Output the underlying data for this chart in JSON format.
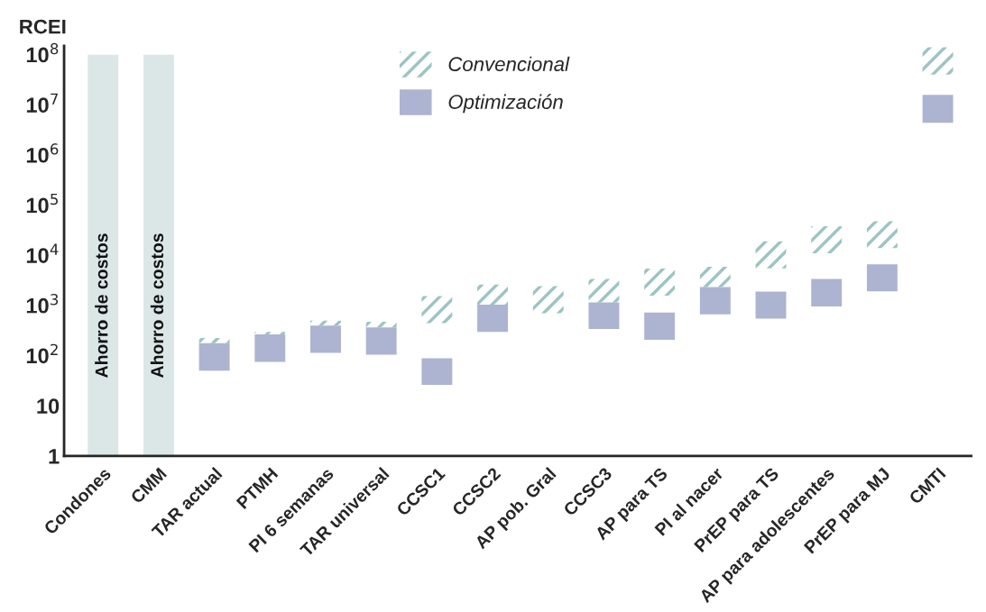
{
  "chart_data": {
    "type": "bar",
    "ylabel": "RCEI",
    "log": true,
    "legend": "top",
    "grid": false,
    "categories": [
      "Condones",
      "CMM",
      "TAR actual",
      "PTMH",
      "PI 6 semanas",
      "TAR universal",
      "CCSC1",
      "CCSC2",
      "AP pob. Gral",
      "CCSC3",
      "AP para TS",
      "PI al nacer",
      "PrEP para TS",
      "AP para adolescentes",
      "PrEP para MJ",
      "CMTI"
    ],
    "ylim": [
      1,
      150000000
    ],
    "yticks": [
      1,
      10,
      {
        "value": 100,
        "label": "10$^{2}$"
      },
      {
        "value": 1000,
        "label": "10$^{3}$"
      },
      {
        "value": 10000,
        "label": "10$^{4}$"
      },
      {
        "value": 100000,
        "label": "10$^{5}$"
      },
      {
        "value": 1000000,
        "label": "10$^{6}$"
      },
      {
        "value": 10000000,
        "label": "10$^{7}$"
      },
      {
        "value": 100000000,
        "label": "10$^{8}$"
      }
    ],
    "series": [
      {
        "color": "#dbe7e6",
        "base": [
          1,
          1,
          null,
          null,
          null,
          null,
          null,
          null,
          null,
          null,
          null,
          null,
          null,
          null,
          null,
          null
        ],
        "values": [
          99999999,
          99999999,
          null,
          null,
          null,
          null,
          null,
          null,
          null,
          null,
          null,
          null,
          null,
          null,
          null,
          null
        ],
        "value_labels": [
          "Ahorro de costos",
          "Ahorro de costos",
          null,
          null,
          null,
          null,
          null,
          null,
          null,
          null,
          null,
          null,
          null,
          null,
          null,
          null
        ]
      },
      {
        "name": "Optimización",
        "color": "#adb4d1",
        "base": [
          null,
          null,
          50,
          75,
          113,
          105,
          26,
          298,
          null,
          340,
          207,
          665,
          550,
          960,
          1910,
          4400000
        ],
        "values": [
          null,
          null,
          127,
          190,
          283,
          259,
          63,
          742,
          null,
          810,
          513,
          1675,
          1350,
          2410,
          4740,
          11400000
        ]
      },
      {
        "name": "Convencional",
        "color": "#9cc4c2",
        "base": [
          null,
          null,
          177,
          265,
          396,
          364,
          446,
          1040,
          705,
          1150,
          1580,
          2340,
          5500,
          11000,
          14000,
          40000000
        ],
        "values": [
          null,
          null,
          47,
          33,
          104,
          111,
          1094,
          1560,
          1735,
          2220,
          3870,
          3560,
          13500,
          27000,
          34000,
          100000000
        ]
      }
    ]
  }
}
